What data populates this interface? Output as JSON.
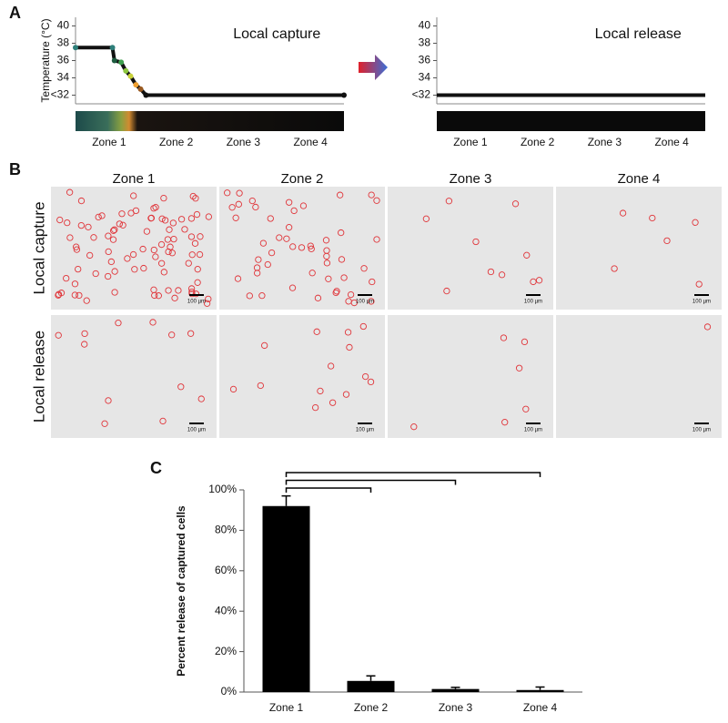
{
  "panel_labels": [
    "A",
    "B",
    "C"
  ],
  "chart_data": [
    {
      "type": "line",
      "title": "Local capture",
      "y_label": "Temperature (°C)",
      "categories": [
        "Zone 1",
        "Zone 2",
        "Zone 3",
        "Zone 4"
      ],
      "xlim": [
        0,
        4
      ],
      "x": [
        0,
        0.55,
        0.58,
        0.68,
        0.75,
        0.82,
        0.9,
        0.97,
        1.05,
        4
      ],
      "series": [
        {
          "color": "#111111",
          "values": [
            37.5,
            37.5,
            36,
            35.8,
            34.8,
            34.2,
            33.2,
            32.7,
            32,
            32
          ],
          "point_colors": [
            "#2e7f7a",
            "#2e7f7a",
            "#1e5c40",
            "#3fa04f",
            "#8cc63e",
            "#c9d23a",
            "#f0a030",
            "#9a5a20",
            "#111111",
            "#111111"
          ]
        }
      ],
      "ylim": [
        31,
        41
      ],
      "yticks": [
        {
          "value": 32,
          "label": "<32"
        },
        34,
        36,
        38,
        40
      ]
    },
    {
      "type": "line",
      "title": "Local release",
      "categories": [
        "Zone 1",
        "Zone 2",
        "Zone 3",
        "Zone 4"
      ],
      "xlim": [
        0,
        4
      ],
      "x": [
        0,
        4
      ],
      "series": [
        {
          "color": "#111111",
          "values": [
            32,
            32
          ]
        }
      ],
      "ylim": [
        31,
        41
      ],
      "yticks": [
        {
          "value": 32,
          "label": "<32"
        },
        34,
        36,
        38,
        40
      ]
    },
    {
      "type": "bar",
      "y_label": "Percent release of captured cells",
      "categories": [
        "Zone 1",
        "Zone 2",
        "Zone 3",
        "Zone 4"
      ],
      "values": [
        92,
        5.5,
        1.5,
        1
      ],
      "errors": [
        5,
        2.5,
        0.8,
        1.5
      ],
      "color": "#000000",
      "ylim": [
        0,
        100
      ],
      "yticks": [
        {
          "value": 0,
          "label": "0%"
        },
        {
          "value": 20,
          "label": "20%"
        },
        {
          "value": 40,
          "label": "40%"
        },
        {
          "value": 60,
          "label": "60%"
        },
        {
          "value": 80,
          "label": "80%"
        },
        {
          "value": 100,
          "label": "100%"
        }
      ]
    }
  ],
  "panel_b": {
    "columns": [
      "Zone 1",
      "Zone 2",
      "Zone 3",
      "Zone 4"
    ],
    "rows": [
      "Local capture",
      "Local release"
    ],
    "scale_bar": "100 µm"
  }
}
